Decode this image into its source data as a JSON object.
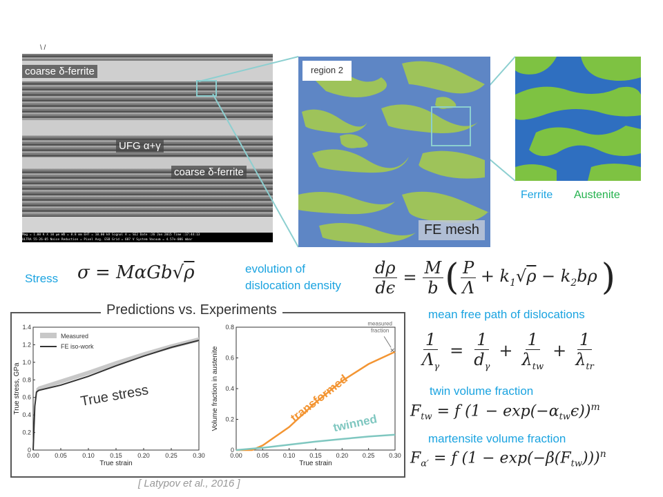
{
  "top_marker": "\\ /",
  "sem": {
    "label_coarse_1": "coarse δ-ferrite",
    "label_ufg": "UFG α+γ",
    "label_coarse_2": "coarse δ-ferrite",
    "footer_line_1": "Mag = 1.00 K X   10 μm     WD = 8.8 mm     EHT = 10.00 kV    Signal A = SE2    Date :26 Jan 2015   Time :17:44:13",
    "footer_line_2": "ULTRA 55-26-05                                 Noise Reduction = Pixel Avg.    ESB Grid = 687 V    System Vacuum = 4.57e-006 mbar"
  },
  "mesh": {
    "region_label": "region 2",
    "fe_label": "FE mesh",
    "legend_ferrite": "Ferrite",
    "legend_austenite": "Austenite",
    "colors": {
      "ferrite": "#2f6fc0",
      "austenite": "#7ec242",
      "outline": "#8ccfd0"
    }
  },
  "equations": {
    "stress_label": "Stress",
    "evolution_label_1": "evolution of",
    "evolution_label_2": "dislocation density",
    "mfp_label": "mean free path of dislocations",
    "twin_label": "twin volume fraction",
    "martensite_label": "martensite volume fraction"
  },
  "panel": {
    "title": "Predictions vs. Experiments",
    "citation": "[ Latypov et al., 2016 ]"
  },
  "chart_data": [
    {
      "type": "line",
      "xlabel": "True strain",
      "ylabel": "True stress, GPa",
      "xlim": [
        0,
        0.3
      ],
      "ylim": [
        0,
        1.4
      ],
      "x_ticks": [
        "0.00",
        "0.05",
        "0.10",
        "0.15",
        "0.20",
        "0.25",
        "0.30"
      ],
      "y_ticks": [
        "0",
        "0.2",
        "0.4",
        "0.6",
        "0.8",
        "1.0",
        "1.2",
        "1.4"
      ],
      "legend": [
        "Measured",
        "FE iso-work"
      ],
      "legend_position": "top-left",
      "annotation": "True stress",
      "series": [
        {
          "name": "Measured",
          "x": [
            0.0,
            0.003,
            0.006,
            0.01,
            0.05,
            0.1,
            0.15,
            0.2,
            0.25,
            0.3
          ],
          "y": [
            0.0,
            0.5,
            0.68,
            0.7,
            0.78,
            0.88,
            0.99,
            1.09,
            1.18,
            1.26
          ]
        },
        {
          "name": "FE iso-work",
          "x": [
            0.0,
            0.003,
            0.006,
            0.01,
            0.05,
            0.1,
            0.15,
            0.2,
            0.25,
            0.3
          ],
          "y": [
            0.0,
            0.5,
            0.66,
            0.68,
            0.74,
            0.84,
            0.96,
            1.07,
            1.17,
            1.25
          ]
        }
      ]
    },
    {
      "type": "line",
      "xlabel": "True strain",
      "ylabel": "Volume fraction in austenite",
      "xlim": [
        0,
        0.3
      ],
      "ylim": [
        0,
        0.8
      ],
      "x_ticks": [
        "0.00",
        "0.05",
        "0.10",
        "0.15",
        "0.20",
        "0.25",
        "0.30"
      ],
      "y_ticks": [
        "0",
        "0.2",
        "0.4",
        "0.6",
        "0.8"
      ],
      "annotation": "measured fraction",
      "measured_point": {
        "x": 0.295,
        "y": 0.65
      },
      "series": [
        {
          "name": "transformed",
          "color": "#f39533",
          "x": [
            0.0,
            0.03,
            0.05,
            0.1,
            0.15,
            0.2,
            0.25,
            0.3
          ],
          "y": [
            0.0,
            0.0,
            0.03,
            0.15,
            0.31,
            0.45,
            0.56,
            0.64
          ]
        },
        {
          "name": "twinned",
          "color": "#7fc7c0",
          "x": [
            0.0,
            0.05,
            0.1,
            0.15,
            0.2,
            0.25,
            0.3
          ],
          "y": [
            0.0,
            0.015,
            0.035,
            0.055,
            0.072,
            0.088,
            0.1
          ]
        }
      ]
    }
  ]
}
